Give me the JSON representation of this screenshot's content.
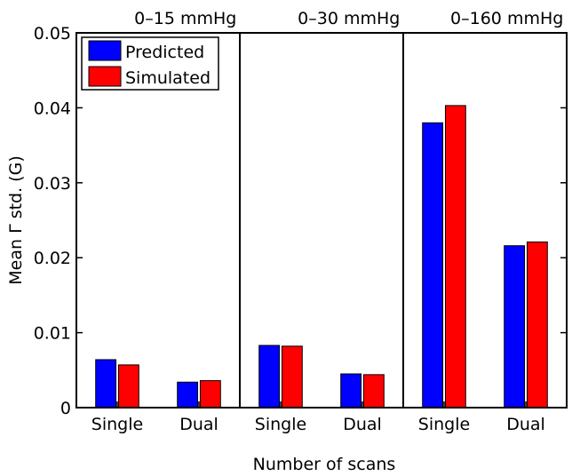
{
  "chart_data": {
    "type": "bar",
    "xlabel": "Number of scans",
    "ylabel": "Mean Γ std. (G)",
    "ylim": [
      0,
      0.05
    ],
    "yticks": [
      "0",
      "0.01",
      "0.02",
      "0.03",
      "0.04",
      "0.05"
    ],
    "grid": false,
    "legend_position": "top-left",
    "groups": [
      {
        "label": "0–15 mmHg",
        "categories": [
          "Single",
          "Dual"
        ]
      },
      {
        "label": "0–30 mmHg",
        "categories": [
          "Single",
          "Dual"
        ]
      },
      {
        "label": "0–160 mmHg",
        "categories": [
          "Single",
          "Dual"
        ]
      }
    ],
    "categories": [
      "Single",
      "Dual",
      "Single",
      "Dual",
      "Single",
      "Dual"
    ],
    "series": [
      {
        "name": "Predicted",
        "color": "#0000ff",
        "values": [
          0.0064,
          0.0034,
          0.0083,
          0.0045,
          0.038,
          0.0216
        ]
      },
      {
        "name": "Simulated",
        "color": "#ff0000",
        "values": [
          0.0057,
          0.0036,
          0.0082,
          0.0044,
          0.0403,
          0.0221
        ]
      }
    ]
  }
}
